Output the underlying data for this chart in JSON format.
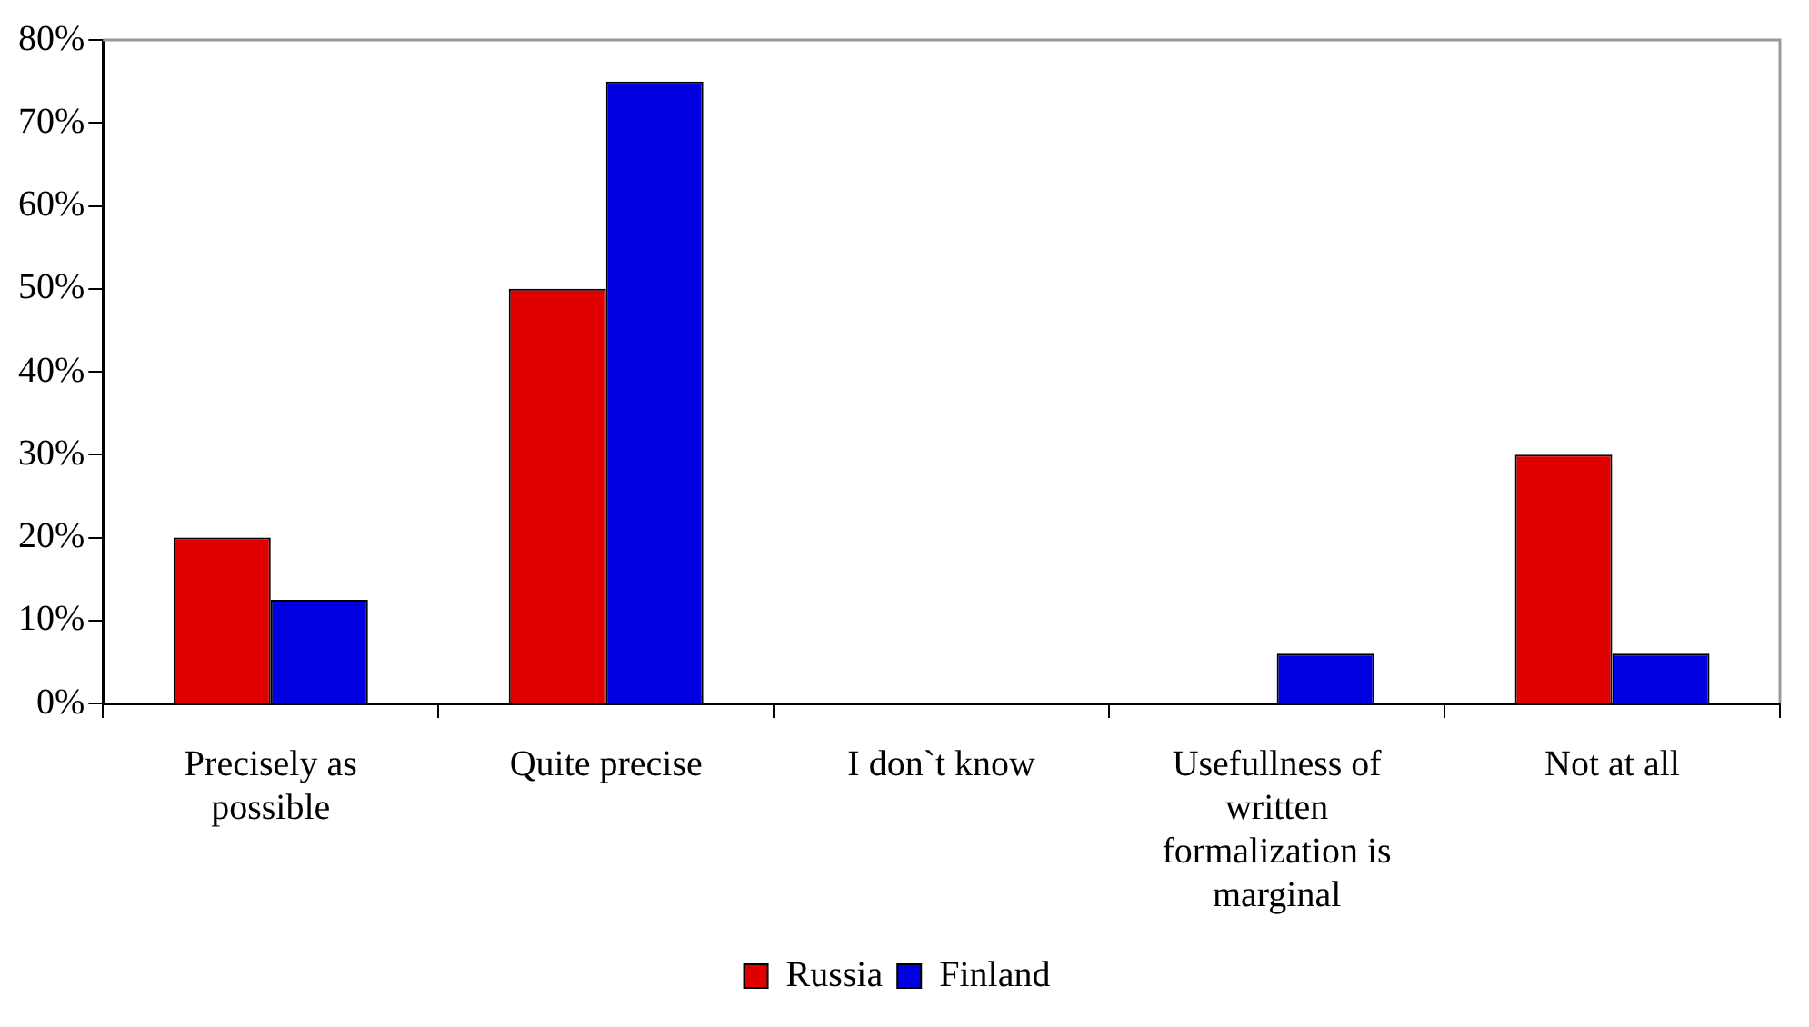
{
  "chart_data": {
    "type": "bar",
    "categories": [
      "Precisely as possible",
      "Quite precise",
      "I don`t know",
      "Usefullness of written formalization is marginal",
      "Not at all"
    ],
    "series": [
      {
        "name": "Russia",
        "color": "#e00000",
        "values": [
          20,
          50,
          0,
          0,
          30
        ]
      },
      {
        "name": "Finland",
        "color": "#0000e0",
        "values": [
          12.5,
          75,
          0,
          6,
          6
        ]
      }
    ],
    "ylim": [
      0,
      80
    ],
    "yticks": [
      {
        "value": 0,
        "label": "0%"
      },
      {
        "value": 10,
        "label": "10%"
      },
      {
        "value": 20,
        "label": "20%"
      },
      {
        "value": 30,
        "label": "30%"
      },
      {
        "value": 40,
        "label": "40%"
      },
      {
        "value": 50,
        "label": "50%"
      },
      {
        "value": 60,
        "label": "60%"
      },
      {
        "value": 70,
        "label": "70%"
      },
      {
        "value": 80,
        "label": "80%"
      }
    ],
    "grid": false,
    "legend": "bottom"
  }
}
